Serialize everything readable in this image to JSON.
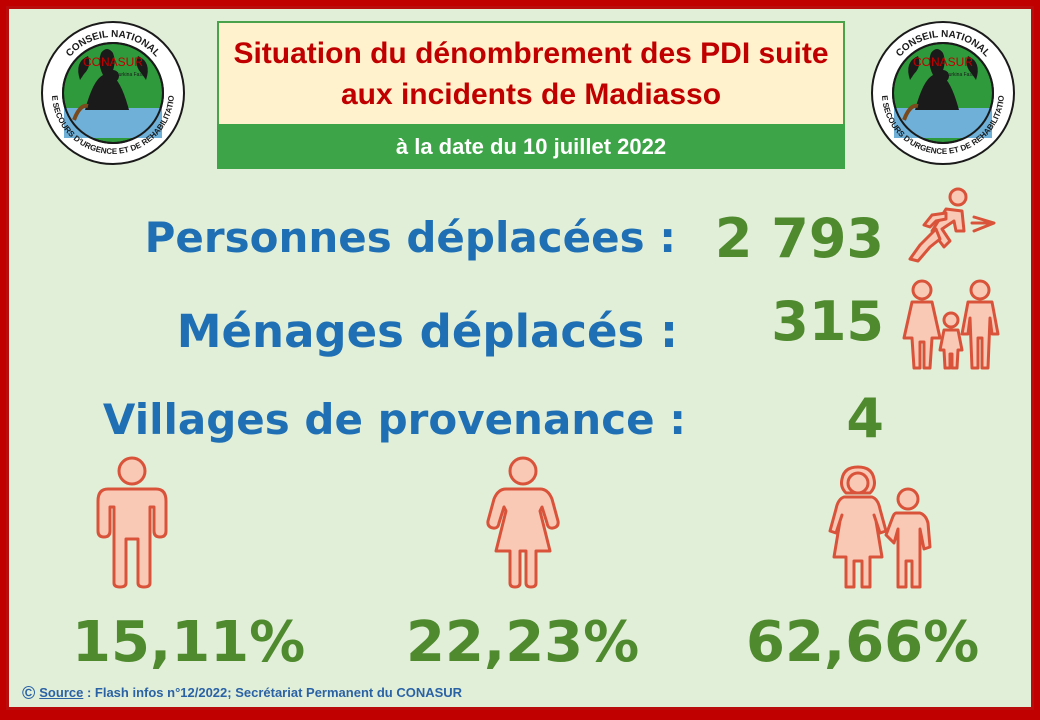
{
  "header": {
    "title_line1": "Situation du dénombrement des PDI suite",
    "title_line2": "aux incidents de Madiasso",
    "date": "à la date du 10 juillet 2022"
  },
  "logo": {
    "org_top": "CONSEIL NATIONAL",
    "acronym": "CONASUR",
    "country": "Burkina Faso",
    "org_bottom": "DE SECOURS D'URGENCE ET DE REHABILITATION"
  },
  "stats": {
    "displaced_label": "Personnes déplacées :",
    "displaced_value": "2 793",
    "households_label": "Ménages déplacés :",
    "households_value": "315",
    "villages_label": "Villages de provenance :",
    "villages_value": "4"
  },
  "breakdown": {
    "men_pct": "15,11%",
    "women_pct": "22,23%",
    "children_pct": "62,66%"
  },
  "footer": {
    "copyright_symbol": "©",
    "source_word": "Source",
    "source_text": " : Flash infos n°12/2022;  Secrétariat Permanent du CONASUR"
  },
  "colors": {
    "frame": "#c00000",
    "background": "#e2efd8",
    "title_text": "#c00000",
    "date_bar": "#3da447",
    "label_blue": "#1f6fb5",
    "value_green": "#4f8a2f",
    "icon_fill": "#f9c9b6",
    "icon_stroke": "#d9533a"
  },
  "icons": [
    "conasur-logo-left",
    "conasur-logo-right",
    "running-person-icon",
    "family-icon",
    "man-icon",
    "woman-icon",
    "mother-child-icon"
  ]
}
